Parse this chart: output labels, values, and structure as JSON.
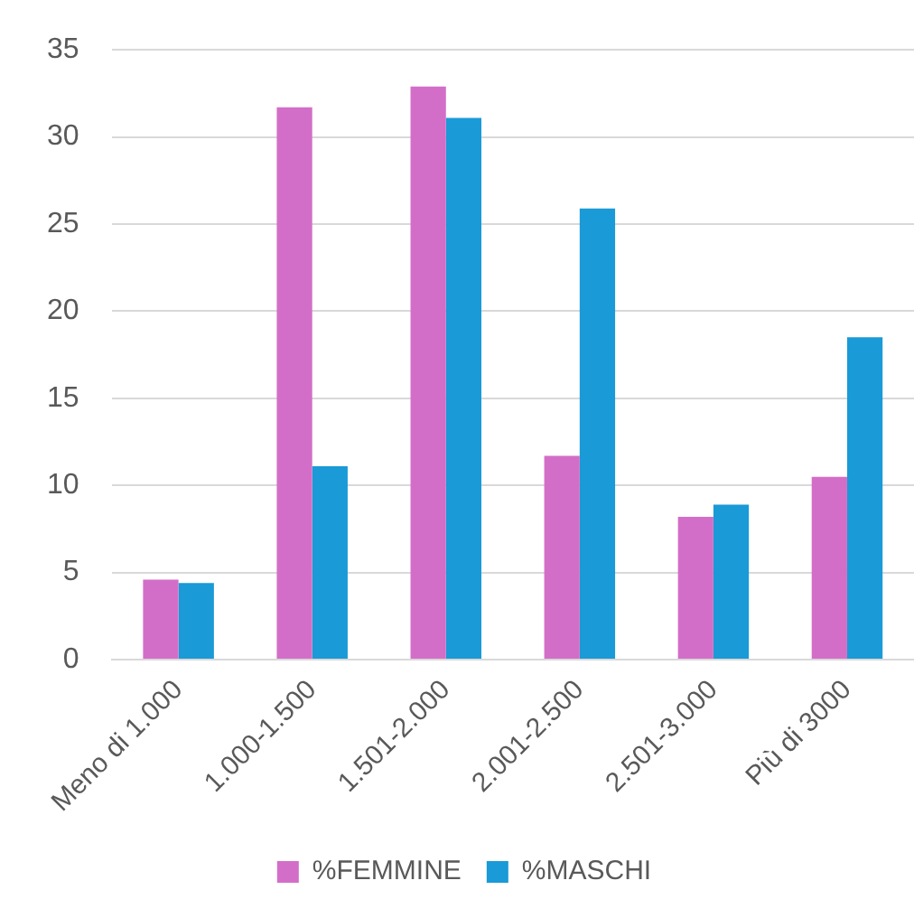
{
  "chart_data": {
    "type": "bar",
    "categories": [
      "Meno di 1.000",
      "1.000-1.500",
      "1.501-2.000",
      "2.001-2.500",
      "2.501-3.000",
      "Più di 3000"
    ],
    "series": [
      {
        "name": "%FEMMINE",
        "color": "#d36ec8",
        "values": [
          4.6,
          31.7,
          32.9,
          11.7,
          8.2,
          10.5
        ]
      },
      {
        "name": "%MASCHI",
        "color": "#1a9ad6",
        "values": [
          4.4,
          11.1,
          31.1,
          25.9,
          8.9,
          18.5
        ]
      }
    ],
    "ylim": [
      0,
      35
    ],
    "yticks": [
      0,
      5,
      10,
      15,
      20,
      25,
      30,
      35
    ],
    "grid": "y",
    "legend": "bottom"
  }
}
